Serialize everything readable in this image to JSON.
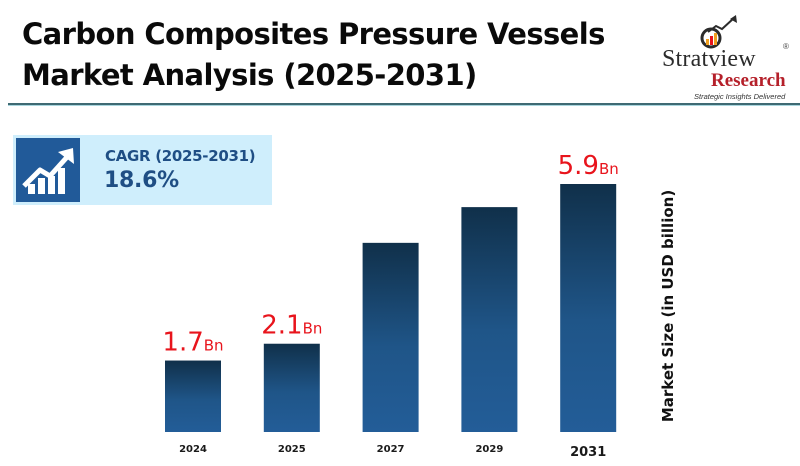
{
  "header": {
    "title_line1": "Carbon Composites Pressure Vessels",
    "title_line2": "Market Analysis (2025-2031)"
  },
  "logo": {
    "brand": "Stratview",
    "registered": "®",
    "subbrand": "Research",
    "tagline": "Strategic Insights Delivered",
    "icon": "magnifier-growth-chart-icon"
  },
  "cagr": {
    "icon": "growth-chart-arrow-icon",
    "label": "CAGR (2025-2031)",
    "value": "18.6%"
  },
  "colors": {
    "bar_top": "#10304a",
    "bar_bottom": "#235d98",
    "value_label": "#e8141c",
    "cagr_bg": "#cfeefc",
    "cagr_icon_bg": "#215a99",
    "cagr_text": "#1f4e84",
    "divider": "#3f6a73"
  },
  "chart_data": {
    "type": "bar",
    "title": "Carbon Composites Pressure Vessels Market Analysis (2025-2031)",
    "categories": [
      "2024",
      "2025",
      "2027",
      "2029",
      "2031"
    ],
    "values": [
      1.7,
      2.1,
      4.5,
      5.35,
      5.9
    ],
    "data_labels": [
      {
        "value": "1.7",
        "unit": "Bn"
      },
      {
        "value": "2.1",
        "unit": "Bn"
      },
      null,
      null,
      {
        "value": "5.9",
        "unit": "Bn"
      }
    ],
    "xlabel": "",
    "ylabel": "Market Size (in USD billion)",
    "ylim": [
      0,
      5.9
    ],
    "grid": false,
    "legend": "none"
  }
}
